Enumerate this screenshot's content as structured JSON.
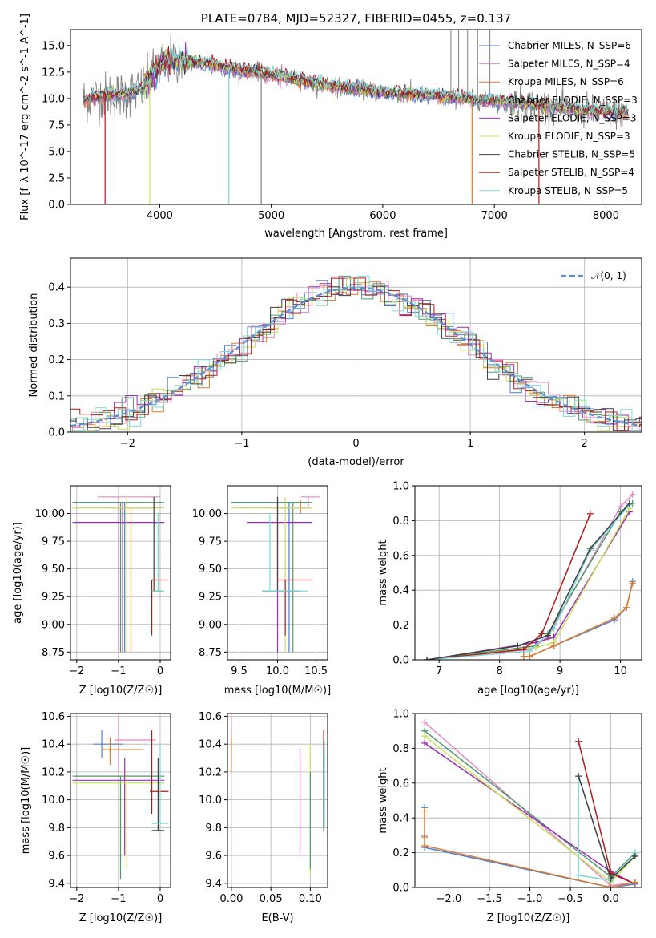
{
  "colors": {
    "chabrier_miles": "#4a7fd4",
    "salpeter_miles": "#e08ac6",
    "kroupa_miles": "#e07b2c",
    "chabrier_elodie": "#4f9a6b",
    "salpeter_elodie": "#9b2fb3",
    "kroupa_elodie": "#c8e05a",
    "chabrier_stelib": "#404040",
    "salpeter_stelib": "#b21a1a",
    "kroupa_stelib": "#7fd8d8",
    "data_spectrum": "#808080",
    "gaussian": "#5b8fd4"
  },
  "chart_data": [
    {
      "id": "spectrum",
      "type": "line",
      "title": "PLATE=0784, MJD=52327, FIBERID=0455, z=0.137",
      "xlabel": "wavelength [Angstrom, rest frame]",
      "ylabel": "Flux [f_λ 10^-17 erg cm^-2 s^-1 A^-1]",
      "xlim": [
        3200,
        8320
      ],
      "ylim": [
        0,
        16.5
      ],
      "xticks": [
        "4000",
        "5000",
        "6000",
        "7000",
        "8000"
      ],
      "yticks": [
        "0.0",
        "2.5",
        "5.0",
        "7.5",
        "10.0",
        "12.5",
        "15.0"
      ],
      "legend_position": "top-right",
      "legend": [
        {
          "label": "Chabrier MILES, N_SSP=6",
          "color_key": "chabrier_miles"
        },
        {
          "label": "Salpeter MILES, N_SSP=4",
          "color_key": "salpeter_miles"
        },
        {
          "label": "Kroupa MILES, N_SSP=6",
          "color_key": "kroupa_miles"
        },
        {
          "label": "Chabrier ELODIE, N_SSP=3",
          "color_key": "chabrier_elodie"
        },
        {
          "label": "Salpeter ELODIE, N_SSP=3",
          "color_key": "salpeter_elodie"
        },
        {
          "label": "Kroupa ELODIE, N_SSP=3",
          "color_key": "kroupa_elodie"
        },
        {
          "label": "Chabrier STELIB, N_SSP=5",
          "color_key": "chabrier_stelib"
        },
        {
          "label": "Salpeter STELIB, N_SSP=4",
          "color_key": "salpeter_stelib"
        },
        {
          "label": "Kroupa STELIB, N_SSP=5",
          "color_key": "kroupa_stelib"
        }
      ],
      "continuum": {
        "x": [
          3300,
          3500,
          3700,
          3850,
          3950,
          4050,
          4200,
          4400,
          4600,
          4800,
          5000,
          5200,
          5400,
          5600,
          5800,
          6000,
          6200,
          6400,
          6600,
          6800,
          7000,
          7200,
          7400,
          7600,
          7800,
          8000,
          8200
        ],
        "y": [
          9.8,
          10.3,
          10.4,
          11.0,
          12.5,
          13.5,
          13.6,
          13.4,
          12.9,
          12.6,
          12.2,
          11.9,
          11.4,
          11.1,
          10.9,
          10.6,
          10.5,
          10.3,
          10.1,
          9.9,
          9.8,
          9.6,
          9.4,
          9.1,
          8.9,
          8.7,
          8.6
        ]
      },
      "drops": [
        {
          "x": 3510,
          "series": "salpeter_stelib"
        },
        {
          "x": 3910,
          "series": "kroupa_elodie"
        },
        {
          "x": 4620,
          "series": "kroupa_stelib"
        },
        {
          "x": 4910,
          "series": "data_spectrum"
        },
        {
          "x": 6800,
          "series": "kroupa_miles"
        },
        {
          "x": 7400,
          "series": "salpeter_stelib"
        }
      ]
    },
    {
      "id": "residuals",
      "type": "histogram",
      "xlabel": "(data-model)/error",
      "ylabel": "Normed distribution",
      "xlim": [
        -2.5,
        2.5
      ],
      "ylim": [
        0,
        0.48
      ],
      "xticks": [
        "−2",
        "−1",
        "0",
        "1",
        "2"
      ],
      "yticks": [
        "0.0",
        "0.1",
        "0.2",
        "0.3",
        "0.4"
      ],
      "grid": true,
      "legend_position": "top-right",
      "legend": [
        {
          "label": "𝒩(0, 1)",
          "color_key": "gaussian"
        }
      ],
      "bin_width": 0.1
    },
    {
      "id": "age-vs-Z",
      "type": "errorbar",
      "xlabel": "Z [log10(Z/Z☉)]",
      "ylabel": "age [log10(age/yr)]",
      "xlim": [
        -2.15,
        0.25
      ],
      "ylim": [
        8.68,
        10.25
      ],
      "xticks": [
        "−2",
        "−1",
        "0"
      ],
      "yticks": [
        "8.75",
        "9.00",
        "9.25",
        "9.50",
        "9.75",
        "10.00"
      ],
      "grid": true
    },
    {
      "id": "age-vs-mass",
      "type": "errorbar",
      "xlabel": "mass [log10(M/M☉)]",
      "xlim": [
        9.35,
        10.65
      ],
      "ylim": [
        8.68,
        10.25
      ],
      "xticks": [
        "9.5",
        "10.0",
        "10.5"
      ],
      "yticks": [
        "8.75",
        "9.00",
        "9.25",
        "9.50",
        "9.75",
        "10.00"
      ],
      "grid": true
    },
    {
      "id": "massweight-vs-age",
      "type": "line",
      "xlabel": "age [log10(age/yr)]",
      "ylabel": "mass weight",
      "xlim": [
        6.6,
        10.35
      ],
      "ylim": [
        0,
        1.0
      ],
      "xticks": [
        "7",
        "8",
        "9",
        "10"
      ],
      "yticks": [
        "0.0",
        "0.2",
        "0.4",
        "0.6",
        "0.8",
        "1.0"
      ],
      "grid": true
    },
    {
      "id": "mass-vs-Z",
      "type": "errorbar",
      "xlabel": "Z [log10(Z/Z☉)]",
      "ylabel": "mass [log10(M/M☉)]",
      "xlim": [
        -2.15,
        0.25
      ],
      "ylim": [
        9.37,
        10.62
      ],
      "xticks": [
        "−2",
        "−1",
        "0"
      ],
      "yticks": [
        "9.4",
        "9.6",
        "9.8",
        "10.0",
        "10.2",
        "10.4",
        "10.6"
      ],
      "grid": true
    },
    {
      "id": "mass-vs-ebv",
      "type": "errorbar",
      "xlabel": "E(B-V)",
      "xlim": [
        -0.005,
        0.122
      ],
      "ylim": [
        9.37,
        10.62
      ],
      "xticks": [
        "0.00",
        "0.05",
        "0.10"
      ],
      "yticks": [
        "9.4",
        "9.6",
        "9.8",
        "10.0",
        "10.2",
        "10.4",
        "10.6"
      ],
      "grid": true
    },
    {
      "id": "massweight-vs-Z",
      "type": "line",
      "xlabel": "Z [log10(Z/Z☉)]",
      "ylabel": "mass weight",
      "xlim": [
        -2.42,
        0.38
      ],
      "ylim": [
        0,
        1.0
      ],
      "xticks": [
        "−2.0",
        "−1.5",
        "−1.0",
        "−0.5",
        "0.0"
      ],
      "yticks": [
        "0.0",
        "0.2",
        "0.4",
        "0.6",
        "0.8",
        "1.0"
      ],
      "grid": true
    }
  ]
}
